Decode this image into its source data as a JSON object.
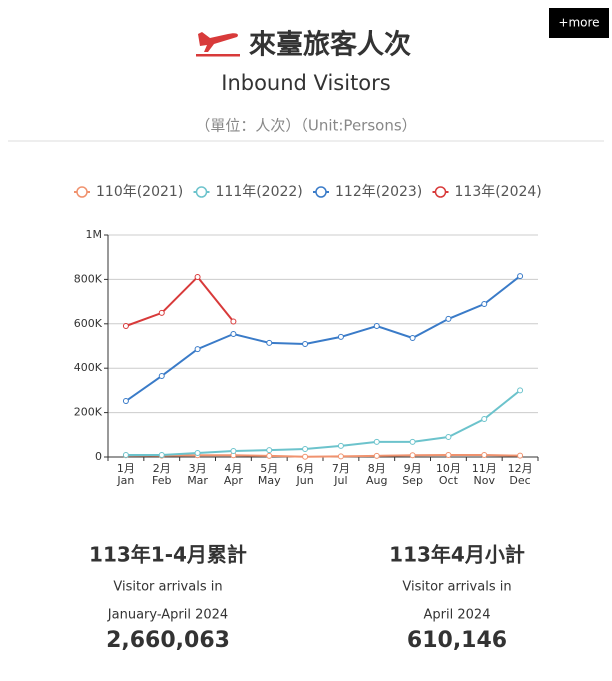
{
  "header": {
    "title": "來臺旅客人次",
    "subtitle": "Inbound Visitors",
    "unit": "（單位：人次）（Unit:Persons）",
    "more": "+more"
  },
  "chart_data": {
    "type": "line",
    "categories": [
      "1月",
      "2月",
      "3月",
      "4月",
      "5月",
      "6月",
      "7月",
      "8月",
      "9月",
      "10月",
      "11月",
      "12月"
    ],
    "categories_en": [
      "Jan",
      "Feb",
      "Mar",
      "Apr",
      "May",
      "Jun",
      "Jul",
      "Aug",
      "Sep",
      "Oct",
      "Nov",
      "Dec"
    ],
    "series": [
      {
        "name": "110年(2021)",
        "color": "#f0926e",
        "values": [
          8000,
          6000,
          8000,
          8000,
          5000,
          1000,
          3000,
          5000,
          8000,
          9000,
          9000,
          6000
        ]
      },
      {
        "name": "111年(2022)",
        "color": "#6cc3cc",
        "values": [
          9000,
          9000,
          18000,
          27000,
          31000,
          36000,
          50000,
          68000,
          68000,
          90000,
          171000,
          300000
        ]
      },
      {
        "name": "112年(2023)",
        "color": "#3a7bc8",
        "values": [
          252000,
          365000,
          486000,
          554000,
          514000,
          509000,
          541000,
          590000,
          536000,
          622000,
          689000,
          815000
        ]
      },
      {
        "name": "113年(2024)",
        "color": "#d83a3a",
        "values": [
          590000,
          649000,
          811000,
          610146,
          null,
          null,
          null,
          null,
          null,
          null,
          null,
          null
        ]
      }
    ],
    "ylim": [
      0,
      1000000
    ],
    "yticks": [
      0,
      {
        "value": 200000,
        "label": "200K"
      },
      {
        "value": 400000,
        "label": "400K"
      },
      {
        "value": 600000,
        "label": "600K"
      },
      {
        "value": 800000,
        "label": "800K"
      },
      {
        "value": 1000000,
        "label": "1M"
      }
    ],
    "grid": true,
    "legend": "top"
  },
  "stats": [
    {
      "heading": "113年1-4月累計",
      "line1": "Visitor arrivals in",
      "line2": "January-April 2024",
      "value": "2,660,063"
    },
    {
      "heading": "113年4月小計",
      "line1": "Visitor arrivals in",
      "line2": "April 2024",
      "value": "610,146"
    }
  ]
}
